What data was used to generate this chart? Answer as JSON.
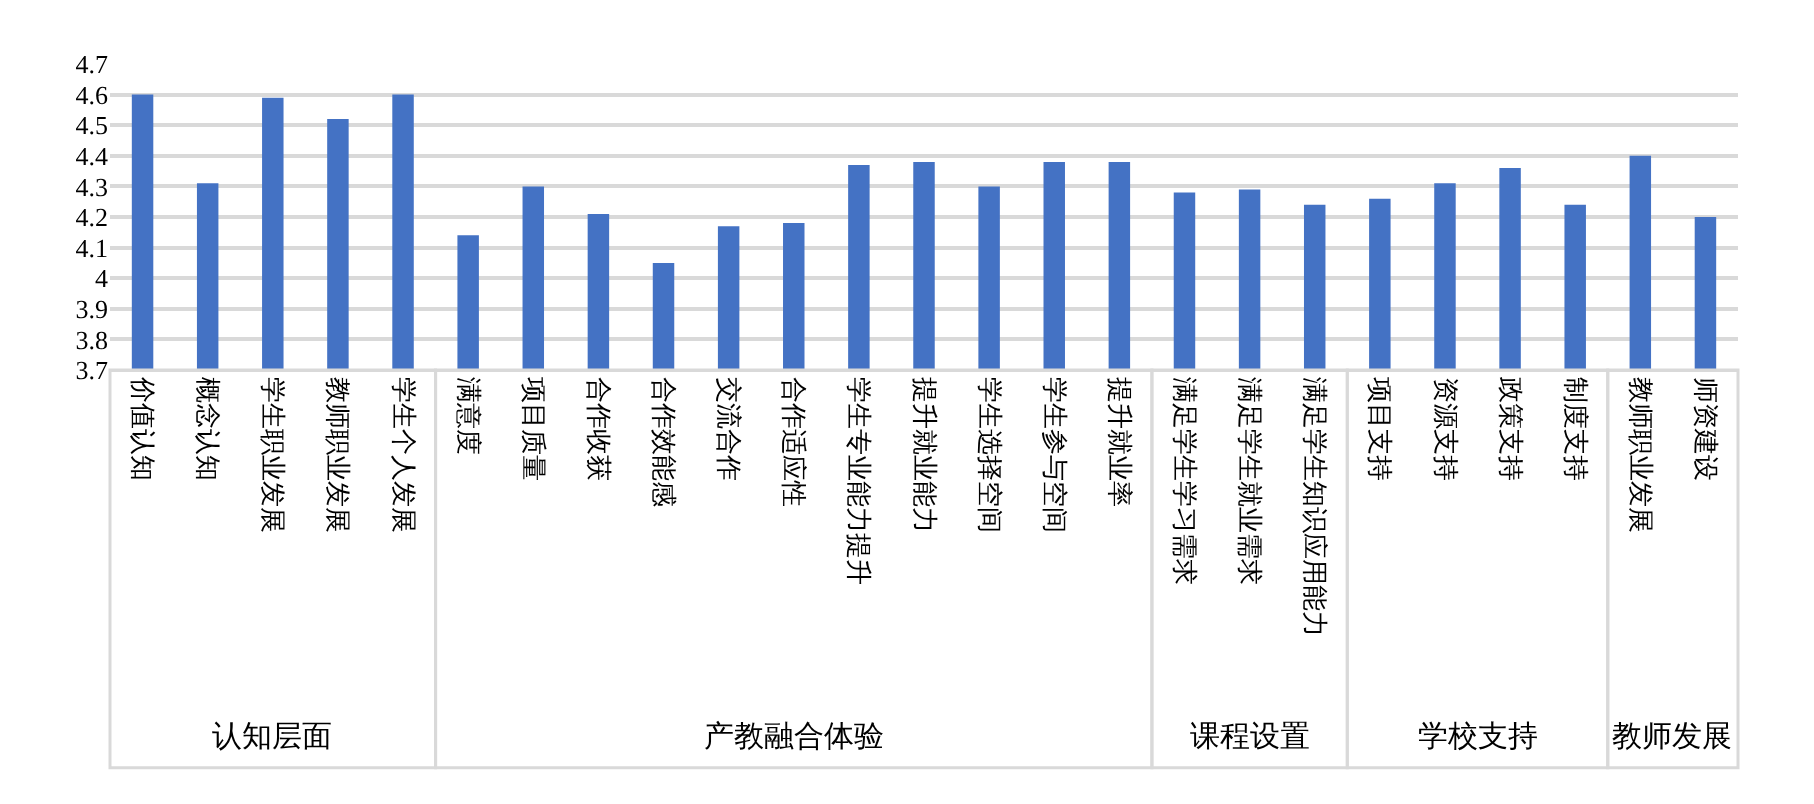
{
  "chart_data": [
    {
      "type": "bar",
      "xlabel": "认知层面",
      "categories": [
        "价值认知",
        "概念认知",
        "学生职业发展",
        "教师职业发展",
        "学生个人发展"
      ],
      "values": [
        4.6,
        4.31,
        4.59,
        4.52,
        4.6
      ],
      "color": "#4472c4",
      "ylim": [
        3.7,
        4.7
      ],
      "yticks": [
        3.7,
        3.8,
        3.9,
        4,
        4.1,
        4.2,
        4.3,
        4.4,
        4.5,
        4.6,
        4.7
      ],
      "grid": "y"
    },
    {
      "type": "bar",
      "xlabel": "产教融合体验",
      "categories": [
        "满意度",
        "项目质量",
        "合作收获",
        "合作效能感",
        "交流合作",
        "合作适应性",
        "学生专业能力提升",
        "提升就业能力",
        "学生选择空间",
        "学生参与空间",
        "提升就业率"
      ],
      "values": [
        4.14,
        4.3,
        4.21,
        4.05,
        4.17,
        4.18,
        4.37,
        4.38,
        4.3,
        4.38,
        4.38
      ],
      "color": "#4472c4",
      "ylim": [
        3.7,
        4.7
      ],
      "yticks": [
        3.7,
        3.8,
        3.9,
        4,
        4.1,
        4.2,
        4.3,
        4.4,
        4.5,
        4.6,
        4.7
      ],
      "grid": "y",
      "tick_labels": "x"
    },
    {
      "type": "bar",
      "xlabel": "课程设置",
      "categories": [
        "满足学生学习需求",
        "满足学生就业需求",
        "满足学生知识应用能力"
      ],
      "values": [
        4.28,
        4.29,
        4.24
      ],
      "color": "#4472c4",
      "ylim": [
        3.7,
        4.7
      ],
      "yticks": [
        3.7,
        3.8,
        3.9,
        4,
        4.1,
        4.2,
        4.3,
        4.4,
        4.5,
        4.6,
        4.7
      ],
      "grid": "y",
      "tick_labels": "x"
    },
    {
      "type": "bar",
      "xlabel": "学校支持",
      "categories": [
        "项目支持",
        "资源支持",
        "政策支持",
        "制度支持"
      ],
      "values": [
        4.26,
        4.31,
        4.36,
        4.24
      ],
      "color": "#4472c4",
      "ylim": [
        3.7,
        4.7
      ],
      "yticks": [
        3.7,
        3.8,
        3.9,
        4,
        4.1,
        4.2,
        4.3,
        4.4,
        4.5,
        4.6,
        4.7
      ],
      "grid": "y",
      "tick_labels": "x"
    },
    {
      "type": "bar",
      "xlabel": "教师发展",
      "categories": [
        "教师职业发展",
        "师资建设"
      ],
      "values": [
        4.4,
        4.2
      ],
      "color": "#4472c4",
      "ylim": [
        3.7,
        4.7
      ],
      "yticks": [
        3.7,
        3.8,
        3.9,
        4,
        4.1,
        4.2,
        4.3,
        4.4,
        4.5,
        4.6,
        4.7
      ],
      "grid": "y",
      "tick_labels": "x"
    }
  ]
}
